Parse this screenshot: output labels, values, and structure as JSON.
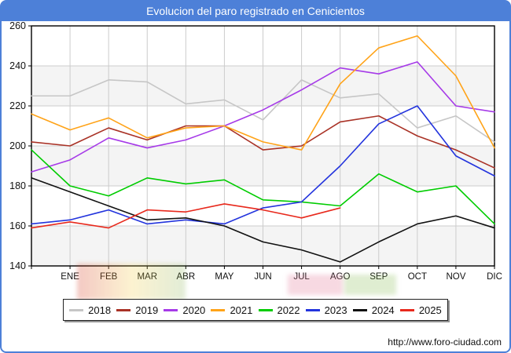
{
  "window": {
    "title": "Evolucion del paro registrado en Cenicientos",
    "footer_url": "http://www.foro-ciudad.com",
    "accent_color": "#4d80d8"
  },
  "chart_data": {
    "type": "line",
    "title": "Evolucion del paro registrado en Cenicientos",
    "categories": [
      "ENE",
      "FEB",
      "MAR",
      "ABR",
      "MAY",
      "JUN",
      "JUL",
      "AGO",
      "SEP",
      "OCT",
      "NOV",
      "DIC"
    ],
    "note": "values[0] is the previous December (line starts on the left axis); values[1..12] correspond to ENE..DIC",
    "ylim": [
      140,
      260
    ],
    "y_ticks": [
      260,
      240,
      220,
      200,
      180,
      160,
      140
    ],
    "grid": true,
    "legend_position": "bottom",
    "shaded_bands": [
      [
        220,
        240
      ],
      [
        180,
        200
      ],
      [
        140,
        160
      ]
    ],
    "series": [
      {
        "name": "2018",
        "color": "#c6c6c6",
        "values": [
          225,
          225,
          233,
          232,
          221,
          223,
          213,
          233,
          224,
          226,
          209,
          215,
          202
        ]
      },
      {
        "name": "2019",
        "color": "#a93226",
        "values": [
          202,
          200,
          209,
          203,
          210,
          210,
          198,
          200,
          212,
          215,
          205,
          198,
          189
        ]
      },
      {
        "name": "2020",
        "color": "#a63ae8",
        "values": [
          187,
          193,
          204,
          199,
          203,
          210,
          218,
          228,
          239,
          236,
          242,
          220,
          217
        ]
      },
      {
        "name": "2021",
        "color": "#ffa318",
        "values": [
          216,
          208,
          214,
          204,
          209,
          210,
          202,
          198,
          231,
          249,
          255,
          235,
          199
        ]
      },
      {
        "name": "2022",
        "color": "#00cc00",
        "values": [
          198,
          180,
          175,
          184,
          181,
          183,
          173,
          172,
          170,
          186,
          177,
          180,
          161
        ]
      },
      {
        "name": "2023",
        "color": "#2334dd",
        "values": [
          161,
          163,
          168,
          161,
          163,
          161,
          169,
          172,
          190,
          211,
          220,
          195,
          185
        ]
      },
      {
        "name": "2024",
        "color": "#111111",
        "values": [
          184,
          177,
          170,
          163,
          164,
          160,
          152,
          148,
          142,
          152,
          161,
          165,
          159
        ]
      },
      {
        "name": "2025",
        "color": "#e8291c",
        "values": [
          159,
          162,
          159,
          168,
          167,
          171,
          168,
          164,
          169
        ]
      }
    ]
  }
}
